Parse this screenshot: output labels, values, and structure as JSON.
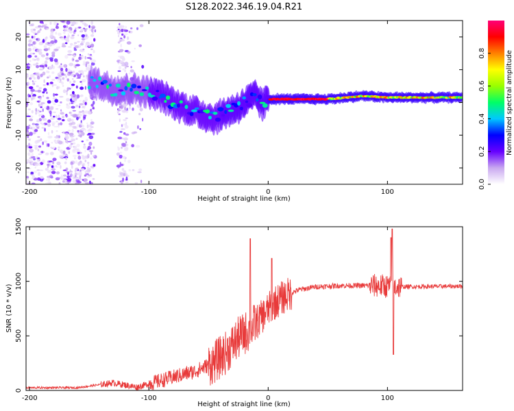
{
  "figure": {
    "title": "S128.2022.346.19.04.R21"
  },
  "colors": {
    "snr_line": "#e83a3a",
    "axis": "#000000",
    "background": "#ffffff"
  },
  "chart_data": [
    {
      "type": "heatmap",
      "name": "spectrogram",
      "xlabel": "Height of straight line (km)",
      "ylabel": "Frequency (Hz)",
      "xlim": [
        -203,
        163
      ],
      "ylim": [
        -25,
        25
      ],
      "x_ticks": [
        -200,
        -100,
        0,
        100
      ],
      "y_ticks": [
        -20,
        -10,
        0,
        10,
        20
      ],
      "x_tick_labels": [
        "-200",
        "-100",
        "0",
        "100"
      ],
      "y_tick_labels": [
        "-20",
        "-10",
        "0",
        "10",
        "20"
      ],
      "ridge": [
        {
          "x": -145,
          "f": 6
        },
        {
          "x": -130,
          "f": 4
        },
        {
          "x": -110,
          "f": 4
        },
        {
          "x": -90,
          "f": 2
        },
        {
          "x": -75,
          "f": -1
        },
        {
          "x": -60,
          "f": -3
        },
        {
          "x": -45,
          "f": -5
        },
        {
          "x": -35,
          "f": -3
        },
        {
          "x": -25,
          "f": -1.5
        },
        {
          "x": -15,
          "f": 1
        },
        {
          "x": -10,
          "f": 2
        },
        {
          "x": -5,
          "f": -1
        },
        {
          "x": 0,
          "f": 1
        },
        {
          "x": 50,
          "f": 1
        },
        {
          "x": 80,
          "f": 2
        },
        {
          "x": 100,
          "f": 1.5
        },
        {
          "x": 163,
          "f": 1.5
        }
      ],
      "colorbar": {
        "label": "Normalized spectral amplitude",
        "range": [
          0,
          1
        ],
        "ticks": [
          0.0,
          0.2,
          0.4,
          0.6,
          0.8
        ],
        "tick_labels": [
          "0.0",
          "0.2",
          "0.4",
          "0.6",
          "0.8"
        ],
        "colormap": [
          "#ffffff",
          "#c9a8f0",
          "#6600ff",
          "#0000ff",
          "#00c8ff",
          "#00ff66",
          "#99ff00",
          "#ffff00",
          "#ff8000",
          "#ff0000",
          "#ff0077"
        ]
      }
    },
    {
      "type": "line",
      "name": "snr",
      "xlabel": "Height of straight line (km)",
      "ylabel": "SNR (10 * v/v)",
      "xlim": [
        -203,
        163
      ],
      "ylim": [
        0,
        1500
      ],
      "x_ticks": [
        -200,
        -100,
        0,
        100
      ],
      "y_ticks": [
        0,
        500,
        1000,
        1500
      ],
      "x_tick_labels": [
        "-200",
        "-100",
        "0",
        "100"
      ],
      "y_tick_labels": [
        "0",
        "500",
        "1000",
        "1500"
      ],
      "envelope": [
        {
          "x": -203,
          "y": 25
        },
        {
          "x": -160,
          "y": 25
        },
        {
          "x": -150,
          "y": 40
        },
        {
          "x": -130,
          "y": 70
        },
        {
          "x": -110,
          "y": 30
        },
        {
          "x": -100,
          "y": 60
        },
        {
          "x": -80,
          "y": 120
        },
        {
          "x": -60,
          "y": 180
        },
        {
          "x": -45,
          "y": 260
        },
        {
          "x": -35,
          "y": 350
        },
        {
          "x": -25,
          "y": 480
        },
        {
          "x": -15,
          "y": 560
        },
        {
          "x": -5,
          "y": 680
        },
        {
          "x": 5,
          "y": 800
        },
        {
          "x": 15,
          "y": 870
        },
        {
          "x": 25,
          "y": 920
        },
        {
          "x": 40,
          "y": 950
        },
        {
          "x": 60,
          "y": 960
        },
        {
          "x": 90,
          "y": 960
        },
        {
          "x": 110,
          "y": 950
        },
        {
          "x": 163,
          "y": 955
        }
      ],
      "spikes": [
        {
          "x": -15,
          "y": 1390
        },
        {
          "x": 3,
          "y": 1210
        },
        {
          "x": 103,
          "y": 1400
        },
        {
          "x": 104,
          "y": 1480
        },
        {
          "x": 105,
          "y": 330
        }
      ]
    }
  ]
}
